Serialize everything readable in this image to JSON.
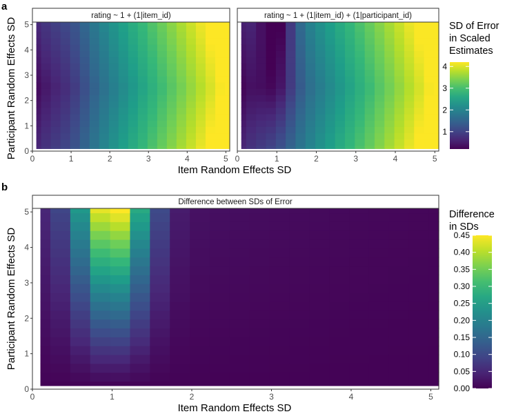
{
  "chart_data": [
    {
      "type": "heatmap",
      "panel_label": "a",
      "facets": [
        {
          "strip": "rating ~ 1 + (1|item_id)",
          "model": "items_only"
        },
        {
          "strip": "rating ~ 1 + (1|item_id) + (1|participant_id)",
          "model": "items_and_participants"
        }
      ],
      "xlabel": "Item Random Effects SD",
      "ylabel": "Participant Random Effects SD",
      "xlim": [
        0,
        5.1
      ],
      "ylim": [
        0,
        5.1
      ],
      "x_ticks": [
        0,
        1,
        2,
        3,
        4,
        5
      ],
      "y_ticks": [
        0,
        1,
        2,
        3,
        4,
        5
      ],
      "grid_values": [
        0.1,
        0.35,
        0.6,
        0.85,
        1.1,
        1.35,
        1.6,
        1.85,
        2.1,
        2.35,
        2.6,
        2.85,
        3.1,
        3.35,
        3.6,
        3.85,
        4.1,
        4.35,
        4.6,
        4.85,
        5.1
      ],
      "legend": {
        "title_lines": [
          "SD of Error",
          "in Scaled",
          "Estimates"
        ],
        "ticks": [
          1,
          2,
          3,
          4
        ],
        "range": [
          0.2,
          4.2
        ]
      }
    },
    {
      "type": "heatmap",
      "panel_label": "b",
      "strip": "Difference between SDs of Error",
      "xlabel": "Item Random Effects SD",
      "ylabel": "Participant Random Effects SD",
      "xlim": [
        0,
        5.1
      ],
      "ylim": [
        0,
        5.1
      ],
      "x_ticks": [
        0,
        1,
        2,
        3,
        4,
        5
      ],
      "y_ticks": [
        0,
        1,
        2,
        3,
        4,
        5
      ],
      "grid_values": [
        0.1,
        0.35,
        0.6,
        0.85,
        1.1,
        1.35,
        1.6,
        1.85,
        2.1,
        2.35,
        2.6,
        2.85,
        3.1,
        3.35,
        3.6,
        3.85,
        4.1,
        4.35,
        4.6,
        4.85,
        5.1
      ],
      "legend": {
        "title_lines": [
          "Difference",
          "in SDs"
        ],
        "ticks": [
          "0.00",
          "0.05",
          "0.10",
          "0.15",
          "0.20",
          "0.25",
          "0.30",
          "0.35",
          "0.40",
          "0.45"
        ],
        "range": [
          0,
          0.45
        ]
      }
    }
  ],
  "colors": {
    "viridis": [
      "#440154",
      "#482878",
      "#3e4a89",
      "#31688e",
      "#26828e",
      "#1f9e89",
      "#35b779",
      "#6ece58",
      "#b5de2b",
      "#fde725"
    ],
    "strip_fill": "#ffffff",
    "strip_border": "#333333",
    "panel_border": "#333333",
    "grid": "#ebebeb"
  }
}
